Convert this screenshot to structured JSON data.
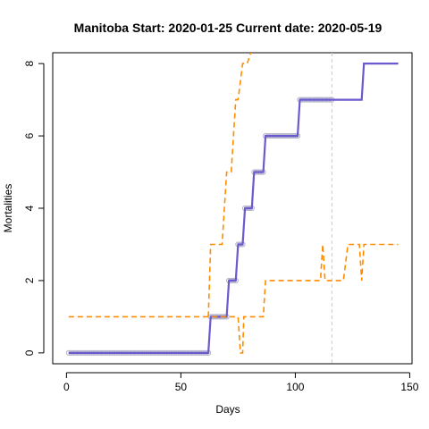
{
  "chart_data": {
    "type": "line",
    "title": "Manitoba Start:  2020-01-25   Current date:  2020-05-19",
    "xlabel": "Days",
    "ylabel": "Mortalities",
    "xlim": [
      -6,
      151
    ],
    "ylim": [
      -0.3,
      8.3
    ],
    "xticks": [
      0,
      50,
      100,
      150
    ],
    "yticks": [
      0,
      2,
      4,
      6,
      8
    ],
    "grid": false,
    "current_day_line": 116,
    "colors": {
      "fit": "#6a5acd",
      "bounds": "#ff8c00",
      "observed": "#b0b0c8",
      "current_line": "#cccccc"
    },
    "series": [
      {
        "role": "fit",
        "style": "solid",
        "points": [
          [
            1,
            0
          ],
          [
            62,
            0
          ],
          [
            63,
            1
          ],
          [
            70,
            1
          ],
          [
            71,
            2
          ],
          [
            74,
            2
          ],
          [
            75,
            3
          ],
          [
            77,
            3
          ],
          [
            78,
            4
          ],
          [
            81,
            4
          ],
          [
            82,
            5
          ],
          [
            86,
            5
          ],
          [
            87,
            6
          ],
          [
            101,
            6
          ],
          [
            102,
            7
          ],
          [
            129,
            7
          ],
          [
            130,
            8
          ],
          [
            145,
            8
          ]
        ]
      },
      {
        "role": "upper-bound",
        "style": "dashed",
        "points": [
          [
            62,
            1
          ],
          [
            63,
            3
          ],
          [
            67,
            3
          ],
          [
            68,
            3
          ],
          [
            70,
            5
          ],
          [
            72,
            5
          ],
          [
            74,
            7
          ],
          [
            75,
            7
          ],
          [
            77,
            8
          ],
          [
            79,
            8
          ],
          [
            81,
            8.4
          ]
        ]
      },
      {
        "role": "lower-bound",
        "style": "dashed",
        "points": [
          [
            1,
            1
          ],
          [
            75,
            1
          ],
          [
            76,
            0
          ],
          [
            77,
            0
          ],
          [
            77.5,
            1
          ],
          [
            86,
            1
          ],
          [
            87,
            2
          ],
          [
            111,
            2
          ],
          [
            112,
            3
          ],
          [
            113,
            2
          ],
          [
            121,
            2
          ],
          [
            123,
            3
          ],
          [
            128,
            3
          ],
          [
            129,
            2
          ],
          [
            130,
            3
          ],
          [
            145,
            3
          ]
        ]
      },
      {
        "role": "observed",
        "style": "points",
        "points": [
          [
            1,
            0
          ],
          [
            2,
            0
          ],
          [
            3,
            0
          ],
          [
            4,
            0
          ],
          [
            5,
            0
          ],
          [
            6,
            0
          ],
          [
            7,
            0
          ],
          [
            8,
            0
          ],
          [
            9,
            0
          ],
          [
            10,
            0
          ],
          [
            11,
            0
          ],
          [
            12,
            0
          ],
          [
            13,
            0
          ],
          [
            14,
            0
          ],
          [
            15,
            0
          ],
          [
            16,
            0
          ],
          [
            17,
            0
          ],
          [
            18,
            0
          ],
          [
            19,
            0
          ],
          [
            20,
            0
          ],
          [
            21,
            0
          ],
          [
            22,
            0
          ],
          [
            23,
            0
          ],
          [
            24,
            0
          ],
          [
            25,
            0
          ],
          [
            26,
            0
          ],
          [
            27,
            0
          ],
          [
            28,
            0
          ],
          [
            29,
            0
          ],
          [
            30,
            0
          ],
          [
            31,
            0
          ],
          [
            32,
            0
          ],
          [
            33,
            0
          ],
          [
            34,
            0
          ],
          [
            35,
            0
          ],
          [
            36,
            0
          ],
          [
            37,
            0
          ],
          [
            38,
            0
          ],
          [
            39,
            0
          ],
          [
            40,
            0
          ],
          [
            41,
            0
          ],
          [
            42,
            0
          ],
          [
            43,
            0
          ],
          [
            44,
            0
          ],
          [
            45,
            0
          ],
          [
            46,
            0
          ],
          [
            47,
            0
          ],
          [
            48,
            0
          ],
          [
            49,
            0
          ],
          [
            50,
            0
          ],
          [
            51,
            0
          ],
          [
            52,
            0
          ],
          [
            53,
            0
          ],
          [
            54,
            0
          ],
          [
            55,
            0
          ],
          [
            56,
            0
          ],
          [
            57,
            0
          ],
          [
            58,
            0
          ],
          [
            59,
            0
          ],
          [
            60,
            0
          ],
          [
            61,
            0
          ],
          [
            62,
            0
          ],
          [
            63,
            1
          ],
          [
            64,
            1
          ],
          [
            65,
            1
          ],
          [
            66,
            1
          ],
          [
            67,
            1
          ],
          [
            68,
            1
          ],
          [
            69,
            1
          ],
          [
            70,
            1
          ],
          [
            71,
            2
          ],
          [
            72,
            2
          ],
          [
            73,
            2
          ],
          [
            74,
            2
          ],
          [
            75,
            3
          ],
          [
            76,
            3
          ],
          [
            77,
            3
          ],
          [
            78,
            4
          ],
          [
            79,
            4
          ],
          [
            80,
            4
          ],
          [
            81,
            4
          ],
          [
            82,
            5
          ],
          [
            83,
            5
          ],
          [
            84,
            5
          ],
          [
            85,
            5
          ],
          [
            86,
            5
          ],
          [
            87,
            6
          ],
          [
            88,
            6
          ],
          [
            89,
            6
          ],
          [
            90,
            6
          ],
          [
            91,
            6
          ],
          [
            92,
            6
          ],
          [
            93,
            6
          ],
          [
            94,
            6
          ],
          [
            95,
            6
          ],
          [
            96,
            6
          ],
          [
            97,
            6
          ],
          [
            98,
            6
          ],
          [
            99,
            6
          ],
          [
            100,
            6
          ],
          [
            101,
            6
          ],
          [
            102,
            7
          ],
          [
            103,
            7
          ],
          [
            104,
            7
          ],
          [
            105,
            7
          ],
          [
            106,
            7
          ],
          [
            107,
            7
          ],
          [
            108,
            7
          ],
          [
            109,
            7
          ],
          [
            110,
            7
          ],
          [
            111,
            7
          ],
          [
            112,
            7
          ],
          [
            113,
            7
          ],
          [
            114,
            7
          ],
          [
            115,
            7
          ],
          [
            116,
            7
          ]
        ]
      }
    ]
  }
}
